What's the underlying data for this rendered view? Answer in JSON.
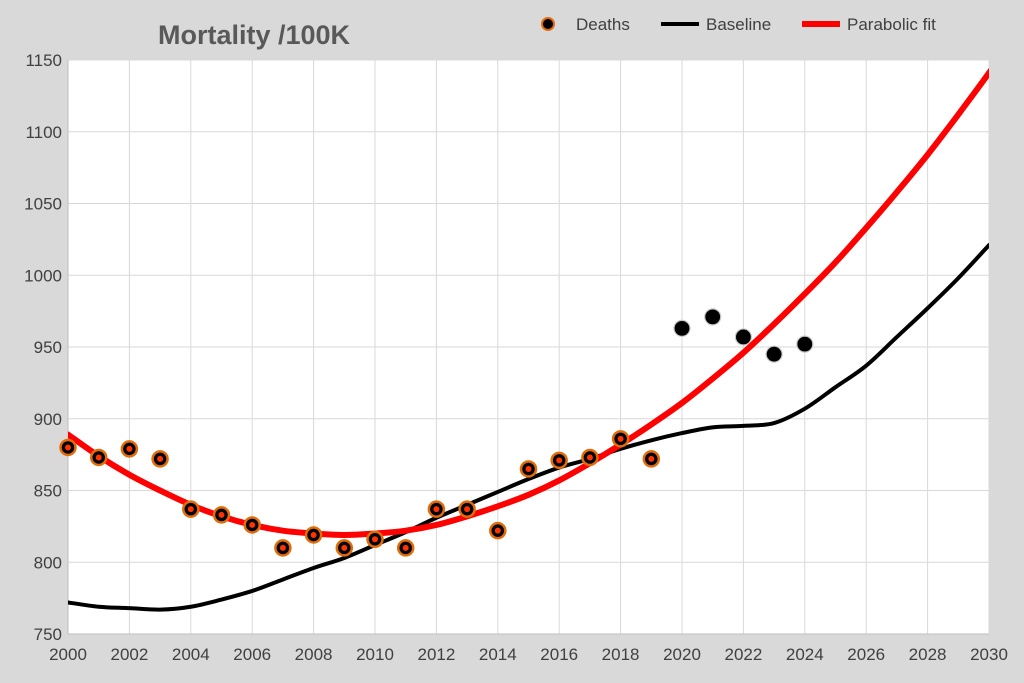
{
  "chart_data": {
    "type": "line",
    "title": "Mortality /100K",
    "xlabel": "",
    "ylabel": "",
    "xlim": [
      2000,
      2030
    ],
    "ylim": [
      750,
      1150
    ],
    "x_ticks": [
      "2000",
      "2002",
      "2004",
      "2006",
      "2008",
      "2010",
      "2012",
      "2014",
      "2016",
      "2018",
      "2020",
      "2022",
      "2024",
      "2026",
      "2028",
      "2030"
    ],
    "y_ticks": [
      "750",
      "800",
      "850",
      "900",
      "950",
      "1000",
      "1050",
      "1100",
      "1150"
    ],
    "grid": true,
    "legend_position": "top-right",
    "series": [
      {
        "name": "Deaths",
        "kind": "scatter",
        "color": "#000000",
        "edge_color": "#e26b0a",
        "points": [
          [
            2000,
            880
          ],
          [
            2001,
            873
          ],
          [
            2002,
            879
          ],
          [
            2003,
            872
          ],
          [
            2004,
            837
          ],
          [
            2005,
            833
          ],
          [
            2006,
            826
          ],
          [
            2007,
            810
          ],
          [
            2008,
            819
          ],
          [
            2009,
            810
          ],
          [
            2010,
            816
          ],
          [
            2011,
            810
          ],
          [
            2012,
            837
          ],
          [
            2013,
            837
          ],
          [
            2014,
            822
          ],
          [
            2015,
            865
          ],
          [
            2016,
            871
          ],
          [
            2017,
            873
          ],
          [
            2018,
            886
          ],
          [
            2019,
            872
          ],
          [
            2020,
            963
          ],
          [
            2021,
            971
          ],
          [
            2022,
            957
          ],
          [
            2023,
            945
          ],
          [
            2024,
            952
          ]
        ],
        "orange_edged_through": 2019
      },
      {
        "name": "Baseline",
        "kind": "line",
        "color": "#000000",
        "points": [
          [
            2000,
            772
          ],
          [
            2001,
            769
          ],
          [
            2002,
            768
          ],
          [
            2003,
            767
          ],
          [
            2004,
            769
          ],
          [
            2005,
            774
          ],
          [
            2006,
            780
          ],
          [
            2007,
            788
          ],
          [
            2008,
            796
          ],
          [
            2009,
            803
          ],
          [
            2010,
            812
          ],
          [
            2011,
            821
          ],
          [
            2012,
            831
          ],
          [
            2013,
            840
          ],
          [
            2014,
            849
          ],
          [
            2015,
            858
          ],
          [
            2016,
            866
          ],
          [
            2017,
            872
          ],
          [
            2018,
            879
          ],
          [
            2019,
            885
          ],
          [
            2020,
            890
          ],
          [
            2021,
            894
          ],
          [
            2022,
            895
          ],
          [
            2023,
            897
          ],
          [
            2024,
            907
          ],
          [
            2025,
            922
          ],
          [
            2026,
            937
          ],
          [
            2027,
            957
          ],
          [
            2028,
            977
          ],
          [
            2029,
            998
          ],
          [
            2030,
            1021
          ]
        ]
      },
      {
        "name": "Parabolic fit",
        "kind": "line",
        "color": "#ff0000",
        "points": [
          [
            2000,
            889
          ],
          [
            2001,
            874
          ],
          [
            2002,
            861
          ],
          [
            2003,
            850
          ],
          [
            2004,
            840
          ],
          [
            2005,
            832
          ],
          [
            2006,
            826
          ],
          [
            2007,
            822
          ],
          [
            2008,
            820
          ],
          [
            2009,
            819
          ],
          [
            2010,
            820
          ],
          [
            2011,
            822
          ],
          [
            2012,
            826
          ],
          [
            2013,
            832
          ],
          [
            2014,
            839
          ],
          [
            2015,
            847
          ],
          [
            2016,
            857
          ],
          [
            2017,
            869
          ],
          [
            2018,
            882
          ],
          [
            2019,
            896
          ],
          [
            2020,
            911
          ],
          [
            2021,
            928
          ],
          [
            2022,
            946
          ],
          [
            2023,
            966
          ],
          [
            2024,
            987
          ],
          [
            2025,
            1009
          ],
          [
            2026,
            1033
          ],
          [
            2027,
            1058
          ],
          [
            2028,
            1084
          ],
          [
            2029,
            1112
          ],
          [
            2030,
            1141
          ],
          [
            2030.5,
            1157
          ]
        ]
      }
    ]
  }
}
